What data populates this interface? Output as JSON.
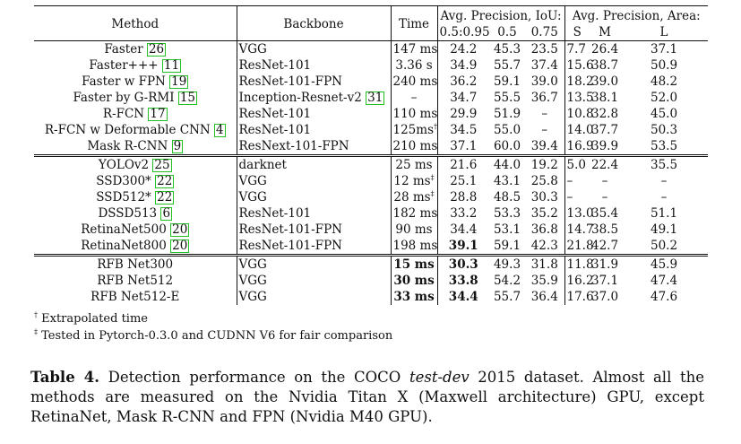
{
  "header": {
    "method": "Method",
    "backbone": "Backbone",
    "time": "Time",
    "ap_iou": "Avg. Precision, IoU:",
    "ap_area": "Avg. Precision, Area:",
    "iou_cols": [
      "0.5:0.95",
      "0.5",
      "0.75"
    ],
    "area_cols": [
      "S",
      "M",
      "L"
    ]
  },
  "groups": [
    [
      {
        "method": "Faster",
        "ref": "26",
        "backbone": "VGG",
        "backbone_ref": "",
        "time": "147 ms",
        "time_sup": "",
        "ap": "24.2",
        "ap50": "45.3",
        "ap75": "23.5",
        "s": "7.7",
        "m": "26.4",
        "l": "37.1"
      },
      {
        "method": "Faster+++",
        "ref": "11",
        "backbone": "ResNet-101",
        "backbone_ref": "",
        "time": "3.36 s",
        "time_sup": "",
        "ap": "34.9",
        "ap50": "55.7",
        "ap75": "37.4",
        "s": "15.6",
        "m": "38.7",
        "l": "50.9"
      },
      {
        "method": "Faster w FPN",
        "ref": "19",
        "backbone": "ResNet-101-FPN",
        "backbone_ref": "",
        "time": "240 ms",
        "time_sup": "",
        "ap": "36.2",
        "ap50": "59.1",
        "ap75": "39.0",
        "s": "18.2",
        "m": "39.0",
        "l": "48.2"
      },
      {
        "method": "Faster by G-RMI",
        "ref": "15",
        "backbone": "Inception-Resnet-v2",
        "backbone_ref": "31",
        "time": "–",
        "time_sup": "",
        "ap": "34.7",
        "ap50": "55.5",
        "ap75": "36.7",
        "s": "13.5",
        "m": "38.1",
        "l": "52.0"
      },
      {
        "method": "R-FCN",
        "ref": "17",
        "backbone": "ResNet-101",
        "backbone_ref": "",
        "time": "110 ms",
        "time_sup": "",
        "ap": "29.9",
        "ap50": "51.9",
        "ap75": "–",
        "s": "10.8",
        "m": "32.8",
        "l": "45.0"
      },
      {
        "method": "R-FCN w Deformable CNN",
        "ref": "4",
        "backbone": "ResNet-101",
        "backbone_ref": "",
        "time": "125ms",
        "time_sup": "†",
        "ap": "34.5",
        "ap50": "55.0",
        "ap75": "–",
        "s": "14.0",
        "m": "37.7",
        "l": "50.3"
      },
      {
        "method": "Mask R-CNN",
        "ref": "9",
        "backbone": "ResNext-101-FPN",
        "backbone_ref": "",
        "time": "210 ms",
        "time_sup": "",
        "ap": "37.1",
        "ap50": "60.0",
        "ap75": "39.4",
        "s": "16.9",
        "m": "39.9",
        "l": "53.5"
      }
    ],
    [
      {
        "method": "YOLOv2",
        "ref": "25",
        "backbone": "darknet",
        "backbone_ref": "",
        "time": "25 ms",
        "time_sup": "",
        "ap": "21.6",
        "ap50": "44.0",
        "ap75": "19.2",
        "s": "5.0",
        "m": "22.4",
        "l": "35.5"
      },
      {
        "method": "SSD300*",
        "ref": "22",
        "backbone": "VGG",
        "backbone_ref": "",
        "time": "12 ms",
        "time_sup": "‡",
        "ap": "25.1",
        "ap50": "43.1",
        "ap75": "25.8",
        "s": "–",
        "m": "–",
        "l": "–"
      },
      {
        "method": "SSD512*",
        "ref": "22",
        "backbone": "VGG",
        "backbone_ref": "",
        "time": "28 ms",
        "time_sup": "‡",
        "ap": "28.8",
        "ap50": "48.5",
        "ap75": "30.3",
        "s": "–",
        "m": "–",
        "l": "–"
      },
      {
        "method": "DSSD513",
        "ref": "6",
        "backbone": "ResNet-101",
        "backbone_ref": "",
        "time": "182 ms",
        "time_sup": "",
        "ap": "33.2",
        "ap50": "53.3",
        "ap75": "35.2",
        "s": "13.0",
        "m": "35.4",
        "l": "51.1"
      },
      {
        "method": "RetinaNet500",
        "ref": "20",
        "backbone": "ResNet-101-FPN",
        "backbone_ref": "",
        "time": "90 ms",
        "time_sup": "",
        "ap": "34.4",
        "ap50": "53.1",
        "ap75": "36.8",
        "s": "14.7",
        "m": "38.5",
        "l": "49.1"
      },
      {
        "method": "RetinaNet800",
        "ref": "20",
        "backbone": "ResNet-101-FPN",
        "backbone_ref": "",
        "time": "198 ms",
        "time_sup": "",
        "ap": "39.1",
        "ap_bold": true,
        "ap50": "59.1",
        "ap75": "42.3",
        "s": "21.8",
        "m": "42.7",
        "l": "50.2"
      }
    ],
    [
      {
        "method": "RFB Net300",
        "ref": "",
        "backbone": "VGG",
        "backbone_ref": "",
        "time": "15 ms",
        "time_bold": true,
        "time_sup": "",
        "ap": "30.3",
        "ap_bold": true,
        "ap50": "49.3",
        "ap75": "31.8",
        "s": "11.8",
        "m": "31.9",
        "l": "45.9"
      },
      {
        "method": "RFB Net512",
        "ref": "",
        "backbone": "VGG",
        "backbone_ref": "",
        "time": "30 ms",
        "time_bold": true,
        "time_sup": "",
        "ap": "33.8",
        "ap_bold": true,
        "ap50": "54.2",
        "ap75": "35.9",
        "s": "16.2",
        "m": "37.1",
        "l": "47.4"
      },
      {
        "method": "RFB Net512-E",
        "ref": "",
        "backbone": "VGG",
        "backbone_ref": "",
        "time": "33 ms",
        "time_bold": true,
        "time_sup": "",
        "ap": "34.4",
        "ap_bold": true,
        "ap50": "55.7",
        "ap75": "36.4",
        "s": "17.6",
        "m": "37.0",
        "l": "47.6"
      }
    ]
  ],
  "footnotes": [
    {
      "mark": "†",
      "text": "Extrapolated time"
    },
    {
      "mark": "‡",
      "text": "Tested in Pytorch-0.3.0 and CUDNN V6 for fair comparison"
    }
  ],
  "caption": {
    "label": "Table 4.",
    "text_before": " Detection performance on the COCO ",
    "italic": "test-dev",
    "text_after": " 2015 dataset. Almost all the methods are measured on the Nvidia Titan X (Maxwell architecture) GPU, except RetinaNet, Mask R-CNN and FPN (Nvidia M40 GPU)."
  }
}
